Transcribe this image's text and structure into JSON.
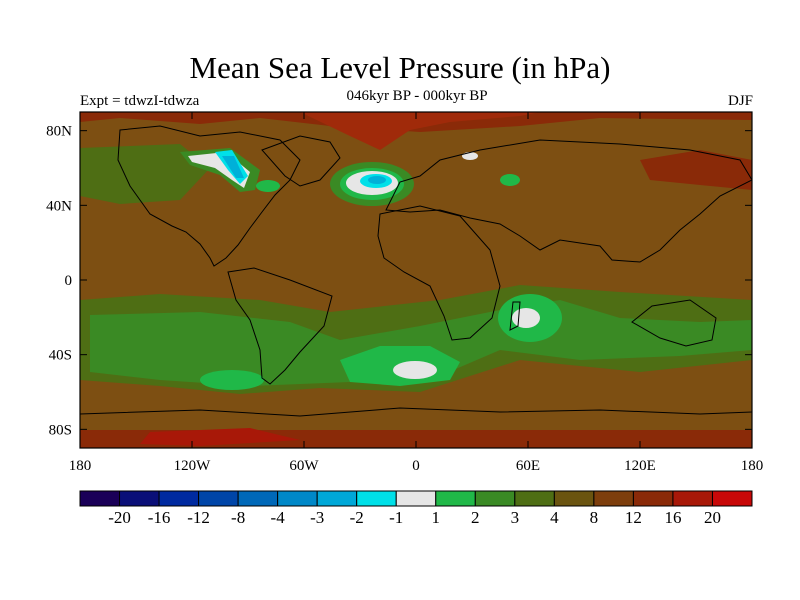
{
  "title": "Mean Sea Level Pressure (in hPa)",
  "subtitle": "046kyr BP - 000kyr BP",
  "left_string": "Expt = tdwzI-tdwza",
  "right_string": "DJF",
  "map": {
    "projection": "cylindrical-equidistant",
    "lon_range": [
      -180,
      180
    ],
    "lat_range": [
      -90,
      90
    ],
    "lon_tick_labels": [
      "180",
      "120W",
      "60W",
      "0",
      "60E",
      "120E",
      "180"
    ],
    "lat_tick_labels": [
      "80N",
      "40N",
      "0",
      "40S",
      "80S"
    ],
    "background_color": "#7d4f12",
    "coastline_color": "#000000",
    "regions": [
      {
        "name": "north-atlantic-low-centre",
        "value": "-2",
        "color": "#00b0d8"
      },
      {
        "name": "greenland-low-centre",
        "value": "-2",
        "color": "#00b0d8"
      },
      {
        "name": "arctic-high",
        "value": "12",
        "color": "#a02a0a"
      },
      {
        "name": "south-atlantic-low",
        "value": "1",
        "color": "#e6e6e6"
      },
      {
        "name": "indian-ocean-low",
        "value": "1",
        "color": "#e6e6e6"
      },
      {
        "name": "south-pacific-low",
        "value": "2",
        "color": "#1fbf4a"
      }
    ]
  },
  "colorbar": {
    "labels": [
      "-20",
      "-16",
      "-12",
      "-8",
      "-4",
      "-3",
      "-2",
      "-1",
      "1",
      "2",
      "3",
      "4",
      "8",
      "12",
      "16",
      "20"
    ],
    "colors": [
      "#1a0058",
      "#0a0f78",
      "#002aa0",
      "#0045a8",
      "#0068b8",
      "#0088c8",
      "#00a8d8",
      "#00e0e8",
      "#e6e6e6",
      "#20b848",
      "#3a8a24",
      "#4e6e14",
      "#6a5410",
      "#7d3e0c",
      "#8a2a08",
      "#a81808",
      "#c80808"
    ]
  }
}
